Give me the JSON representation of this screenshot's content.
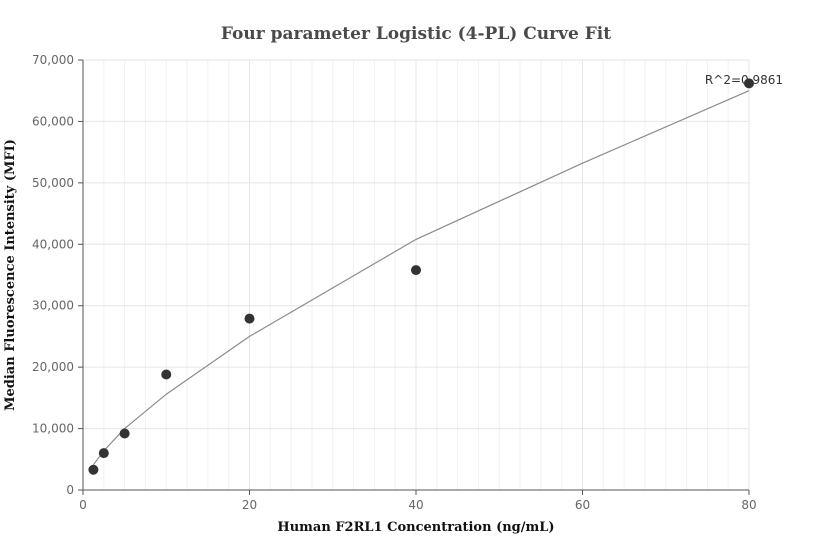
{
  "chart_data": {
    "type": "scatter",
    "title": "Four parameter Logistic (4-PL) Curve Fit",
    "xlabel": "Human F2RL1 Concentration (ng/mL)",
    "ylabel": "Median Fluorescence Intensity (MFI)",
    "xlim": [
      0,
      80
    ],
    "ylim": [
      0,
      70000
    ],
    "x_ticks": [
      0,
      20,
      40,
      60,
      80
    ],
    "y_ticks": [
      0,
      10000,
      20000,
      30000,
      40000,
      50000,
      60000,
      70000
    ],
    "x_tick_labels": [
      "0",
      "20",
      "40",
      "60",
      "80"
    ],
    "y_tick_labels": [
      "0",
      "10,000",
      "20,000",
      "30,000",
      "40,000",
      "50,000",
      "60,000",
      "70,000"
    ],
    "grid": true,
    "points": {
      "x": [
        1.25,
        2.5,
        5,
        10,
        20,
        40,
        80
      ],
      "y": [
        3300,
        6000,
        9200,
        18800,
        27900,
        35800,
        66200
      ]
    },
    "fit_curve": {
      "x": [
        1.25,
        2.5,
        5,
        10,
        20,
        40,
        60,
        80
      ],
      "y": [
        4100,
        6400,
        10000,
        15600,
        25000,
        40800,
        53200,
        65000
      ]
    },
    "annotation": "R^2=0.9861",
    "colors": {
      "points": "#333333",
      "curve": "#8c8c8c",
      "grid": "#e6e6e6",
      "axis": "#555555"
    }
  }
}
